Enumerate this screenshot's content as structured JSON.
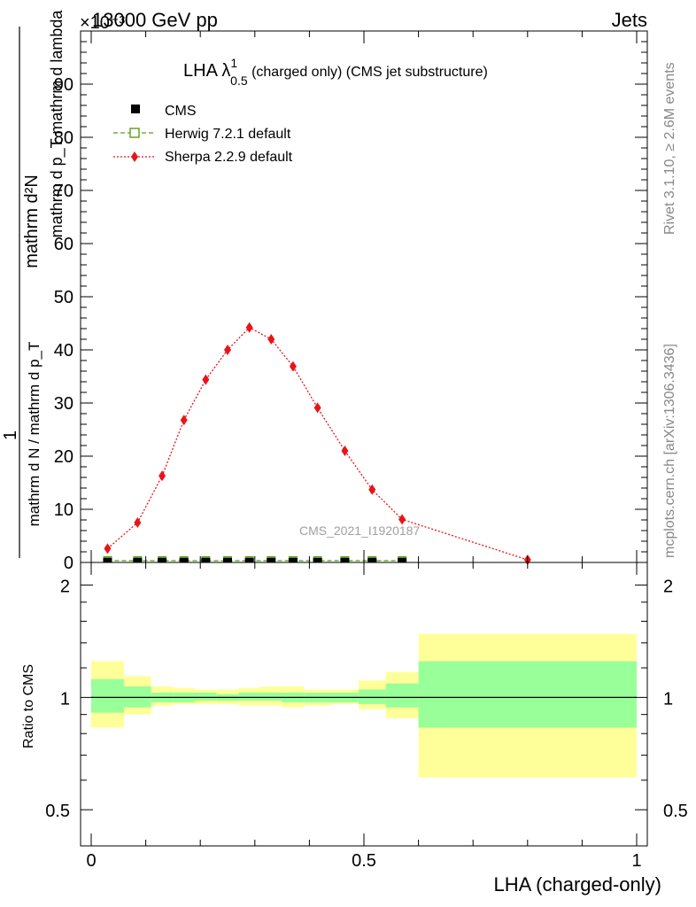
{
  "header": {
    "energy": "13000 GeV pp",
    "process": "Jets",
    "multiplier": "×10⁻³"
  },
  "side_labels": {
    "rivet": "Rivet 3.1.10, ≥ 2.6M events",
    "mcplots": "mcplots.cern.ch [arXiv:1306.3436]"
  },
  "chart_data": [
    {
      "type": "scatter",
      "title": "LHA λ",
      "title_sup": "1",
      "title_sub": "0.5",
      "title_rest": " (charged only) (CMS jet substructure)",
      "ylabel": "1 / mathrm d N / mathrm d p_T mathrm d N / mathrm d p_T mathrm d lambda",
      "ylabel_top": "mathrm d²N",
      "ylabel_top_line2": "mathrm d p_T mathrm d lambda",
      "ylabel_left": "1",
      "ylabel_bottom": "mathrm d N / mathrm d p_T",
      "ylim": [
        0,
        100
      ],
      "yticks": [
        0,
        10,
        20,
        30,
        40,
        50,
        60,
        70,
        80,
        90
      ],
      "ytick_labels": [
        "0",
        "10",
        "20",
        "30",
        "40",
        "50",
        "60",
        "70",
        "80",
        "90"
      ],
      "xlim": [
        0,
        1
      ],
      "watermark": "CMS_2021_I1920187",
      "legend": [
        {
          "name": "CMS",
          "marker": "square",
          "color": "#000000"
        },
        {
          "name": "Herwig 7.2.1 default",
          "marker": "open-square",
          "color": "#5a9e1a"
        },
        {
          "name": "Sherpa 2.2.9 default",
          "marker": "diamond",
          "color": "#e8141a"
        }
      ],
      "series": [
        {
          "name": "CMS",
          "x": [
            0.03,
            0.085,
            0.13,
            0.17,
            0.21,
            0.25,
            0.29,
            0.33,
            0.37,
            0.415,
            0.465,
            0.515,
            0.57
          ],
          "y": [
            0,
            0,
            0,
            0,
            0,
            0,
            0,
            0,
            0,
            0,
            0,
            0,
            0
          ]
        },
        {
          "name": "Herwig 7.2.1 default",
          "x": [
            0.03,
            0.085,
            0.13,
            0.17,
            0.21,
            0.25,
            0.29,
            0.33,
            0.37,
            0.415,
            0.465,
            0.515,
            0.57
          ],
          "y": [
            0,
            0,
            0,
            0,
            0,
            0,
            0,
            0,
            0,
            0,
            0,
            0,
            0
          ]
        },
        {
          "name": "Sherpa 2.2.9 default",
          "x": [
            0.03,
            0.085,
            0.13,
            0.17,
            0.21,
            0.25,
            0.29,
            0.33,
            0.37,
            0.415,
            0.465,
            0.515,
            0.57,
            0.8
          ],
          "y": [
            2.6,
            7.5,
            16.3,
            26.8,
            34.4,
            40.0,
            44.2,
            42.0,
            36.9,
            29.1,
            21.0,
            13.7,
            8.1,
            0.5
          ]
        }
      ]
    },
    {
      "type": "area",
      "ylabel": "Ratio to CMS",
      "xlabel": "LHA (charged-only)",
      "ylim": [
        0.4,
        2.3
      ],
      "yscale": "log",
      "yticks": [
        0.5,
        1,
        2
      ],
      "ytick_labels": [
        "0.5",
        "1",
        "2"
      ],
      "xlim": [
        0,
        1
      ],
      "xticks": [
        0,
        0.5,
        1
      ],
      "xtick_labels": [
        "0",
        "0.5",
        "1"
      ],
      "bins": [
        {
          "x0": 0.0,
          "x1": 0.06,
          "stat_lo": 0.91,
          "stat_hi": 1.12,
          "tot_lo": 0.83,
          "tot_hi": 1.25
        },
        {
          "x0": 0.06,
          "x1": 0.11,
          "stat_lo": 0.94,
          "stat_hi": 1.07,
          "tot_lo": 0.9,
          "tot_hi": 1.14
        },
        {
          "x0": 0.11,
          "x1": 0.15,
          "stat_lo": 0.97,
          "stat_hi": 1.03,
          "tot_lo": 0.95,
          "tot_hi": 1.07
        },
        {
          "x0": 0.15,
          "x1": 0.19,
          "stat_lo": 0.97,
          "stat_hi": 1.03,
          "tot_lo": 0.96,
          "tot_hi": 1.06
        },
        {
          "x0": 0.19,
          "x1": 0.23,
          "stat_lo": 0.98,
          "stat_hi": 1.03,
          "tot_lo": 0.96,
          "tot_hi": 1.05
        },
        {
          "x0": 0.23,
          "x1": 0.27,
          "stat_lo": 0.98,
          "stat_hi": 1.02,
          "tot_lo": 0.96,
          "tot_hi": 1.05
        },
        {
          "x0": 0.27,
          "x1": 0.31,
          "stat_lo": 0.98,
          "stat_hi": 1.03,
          "tot_lo": 0.95,
          "tot_hi": 1.06
        },
        {
          "x0": 0.31,
          "x1": 0.35,
          "stat_lo": 0.98,
          "stat_hi": 1.03,
          "tot_lo": 0.95,
          "tot_hi": 1.07
        },
        {
          "x0": 0.35,
          "x1": 0.39,
          "stat_lo": 0.97,
          "stat_hi": 1.03,
          "tot_lo": 0.94,
          "tot_hi": 1.07
        },
        {
          "x0": 0.39,
          "x1": 0.44,
          "stat_lo": 0.97,
          "stat_hi": 1.03,
          "tot_lo": 0.95,
          "tot_hi": 1.05
        },
        {
          "x0": 0.44,
          "x1": 0.49,
          "stat_lo": 0.97,
          "stat_hi": 1.03,
          "tot_lo": 0.96,
          "tot_hi": 1.05
        },
        {
          "x0": 0.49,
          "x1": 0.54,
          "stat_lo": 0.96,
          "stat_hi": 1.05,
          "tot_lo": 0.93,
          "tot_hi": 1.11
        },
        {
          "x0": 0.54,
          "x1": 0.6,
          "stat_lo": 0.94,
          "stat_hi": 1.09,
          "tot_lo": 0.88,
          "tot_hi": 1.17
        },
        {
          "x0": 0.6,
          "x1": 1.0,
          "stat_lo": 0.83,
          "stat_hi": 1.25,
          "tot_lo": 0.61,
          "tot_hi": 1.48
        }
      ],
      "colors": {
        "stat": "#99ff99",
        "total": "#ffff99",
        "line": "#000000"
      }
    }
  ]
}
